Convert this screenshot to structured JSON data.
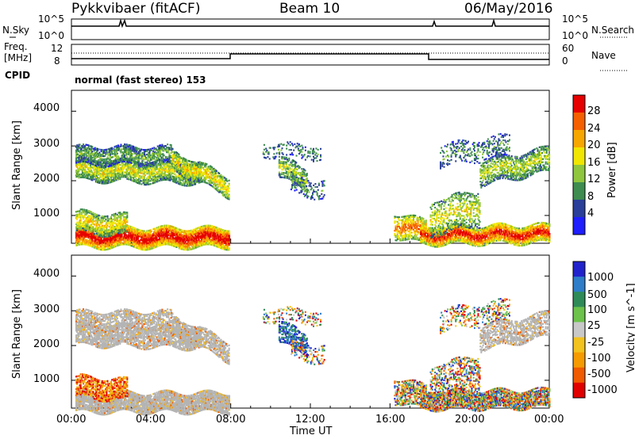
{
  "header": {
    "radar": "Pykkvibaer (fitACF)",
    "beam": "Beam 10",
    "date": "06/May/2016"
  },
  "nsky_panel": {
    "left_label": "N.Sky",
    "right_label": "N.Search",
    "y_ticks_left": [
      "10^5",
      "10^0"
    ],
    "y_ticks_right": [
      "10^5",
      "10^0"
    ]
  },
  "freq_panel": {
    "left_label_1": "Freq.",
    "left_label_2": "[MHz]",
    "right_label": "Nave",
    "y_ticks_left": [
      "12",
      "8"
    ],
    "y_ticks_right": [
      "60",
      "0"
    ]
  },
  "cpid_panel": {
    "left_label": "CPID",
    "mode_text": "normal (fast stereo) 153"
  },
  "chart_data": [
    {
      "type": "heatmap",
      "name": "power",
      "ylabel": "Slant Range [km]",
      "y_ticks": [
        "1000",
        "2000",
        "3000",
        "4000"
      ],
      "ylim": [
        200,
        4600
      ],
      "x_ticks": [
        "00:00",
        "04:00",
        "08:00",
        "12:00",
        "16:00",
        "20:00",
        "00:00"
      ],
      "xlim_hours": [
        0,
        24
      ],
      "colorbar_label": "Power [dB]",
      "colorbar_ticks": [
        "4",
        "8",
        "12",
        "16",
        "20",
        "24",
        "28"
      ],
      "colorbar_range": [
        0,
        32
      ],
      "colors": [
        "#1e1eff",
        "#2a3f9a",
        "#3e8c4f",
        "#8fc63e",
        "#f1e600",
        "#f7a600",
        "#f55f00",
        "#e60000"
      ]
    },
    {
      "type": "heatmap",
      "name": "velocity",
      "ylabel": "Slant Range [km]",
      "y_ticks": [
        "1000",
        "2000",
        "3000",
        "4000"
      ],
      "ylim": [
        200,
        4600
      ],
      "x_ticks": [
        "00:00",
        "04:00",
        "08:00",
        "12:00",
        "16:00",
        "20:00",
        "00:00"
      ],
      "xlabel": "Time UT",
      "xlim_hours": [
        0,
        24
      ],
      "colorbar_label": "Velocity [m s^-1]",
      "colorbar_ticks": [
        "1000",
        "500",
        "100",
        "25",
        "-25",
        "-100",
        "-500",
        "-1000"
      ],
      "colors": [
        "#2222cc",
        "#2e7dc8",
        "#2e8b57",
        "#6cc24a",
        "#c8c8c8",
        "#f2c21e",
        "#f59a00",
        "#f05a00",
        "#e00000"
      ],
      "ground_scatter_color": "#b4b4b4"
    }
  ]
}
